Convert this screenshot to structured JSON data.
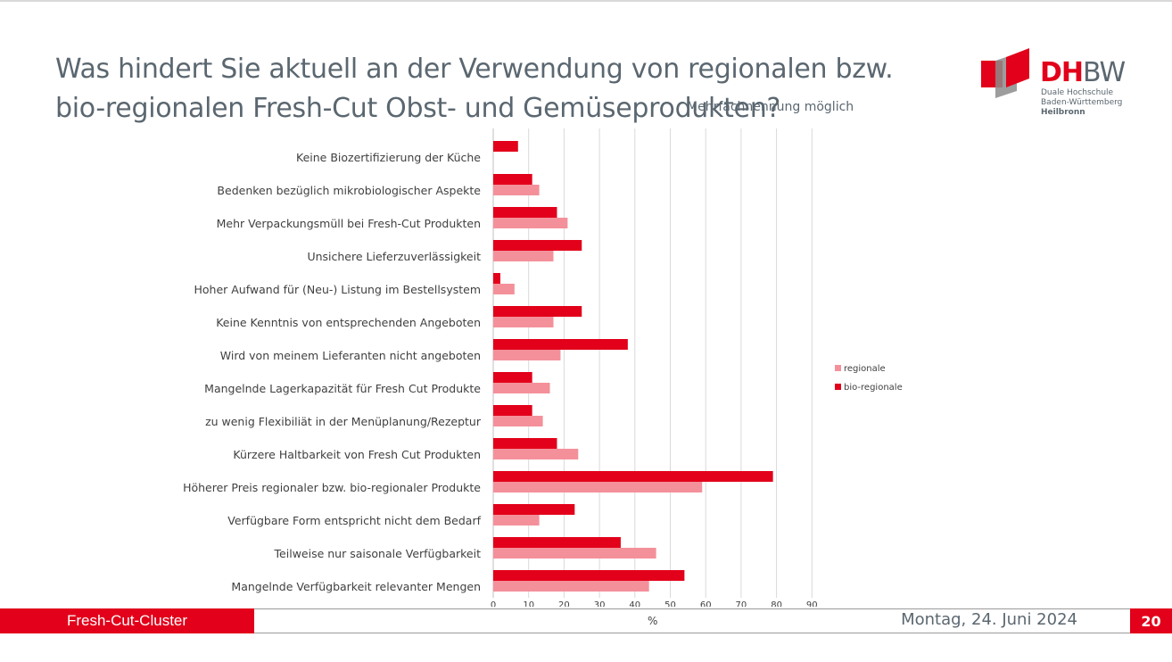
{
  "slide": {
    "title": "Was hindert Sie aktuell an der Verwendung von regionalen bzw. bio-regionalen Fresh-Cut Obst- und Gemüseprodukten?",
    "note": "Mehrfachnennung möglich"
  },
  "logo": {
    "name_red": "DH",
    "name_grey": "BW",
    "line1": "Duale Hochschule",
    "line2": "Baden-Württemberg",
    "line3": "Heilbronn"
  },
  "footer": {
    "project": "Fresh-Cut-Cluster",
    "date": "Montag, 24. Juni 2024",
    "page": "20"
  },
  "colors": {
    "accent": "#e2001a",
    "bio_regionale": "#e2001a",
    "regionale": "#f4909a",
    "text": "#5b6770"
  },
  "chart_data": {
    "type": "bar",
    "orientation": "horizontal",
    "categories": [
      "Keine Biozertifizierung der Küche",
      "Bedenken bezüglich mikrobiologischer Aspekte",
      "Mehr Verpackungsmüll bei Fresh-Cut Produkten",
      "Unsichere Lieferzuverlässigkeit",
      "Hoher Aufwand für (Neu-) Listung im Bestellsystem",
      "Keine Kenntnis von entsprechenden Angeboten",
      "Wird von meinem Lieferanten nicht angeboten",
      "Mangelnde Lagerkapazität für Fresh Cut Produkte",
      "zu wenig Flexibiliät in der Menüplanung/Rezeptur",
      "Kürzere Haltbarkeit von Fresh Cut Produkten",
      "Höherer Preis regionaler bzw. bio-regionaler Produkte",
      "Verfügbare Form entspricht nicht dem Bedarf",
      "Teilweise nur saisonale Verfügbarkeit",
      "Mangelnde Verfügbarkeit relevanter Mengen"
    ],
    "series": [
      {
        "name": "bio-regionale",
        "values": [
          7,
          11,
          18,
          25,
          2,
          25,
          38,
          11,
          11,
          18,
          79,
          23,
          36,
          54
        ]
      },
      {
        "name": "regionale",
        "values": [
          null,
          13,
          21,
          17,
          6,
          17,
          19,
          16,
          14,
          24,
          59,
          13,
          46,
          44
        ]
      }
    ],
    "legend_order": [
      "regionale",
      "bio-regionale"
    ],
    "xlabel": "%",
    "xlim": [
      0,
      90
    ],
    "xticks": [
      0,
      10,
      20,
      30,
      40,
      50,
      60,
      70,
      80,
      90
    ],
    "grid": true,
    "legend_position": "right"
  }
}
